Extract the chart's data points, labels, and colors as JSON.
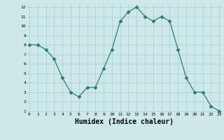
{
  "x": [
    0,
    1,
    2,
    3,
    4,
    5,
    6,
    7,
    8,
    9,
    10,
    11,
    12,
    13,
    14,
    15,
    16,
    17,
    18,
    19,
    20,
    21,
    22,
    23
  ],
  "y": [
    8,
    8,
    7.5,
    6.5,
    4.5,
    3,
    2.5,
    3.5,
    3.5,
    5.5,
    7.5,
    10.5,
    11.5,
    12,
    11,
    10.5,
    11,
    10.5,
    7.5,
    4.5,
    3,
    3,
    1.5,
    1
  ],
  "line_color": "#2d7d6e",
  "marker": "D",
  "marker_size": 2.5,
  "background_color": "#cce8e8",
  "grid_color": "#aacece",
  "xlabel": "Humidex (Indice chaleur)",
  "xlabel_fontsize": 7,
  "xlim": [
    0,
    23
  ],
  "ylim": [
    1,
    12
  ],
  "yticks": [
    1,
    2,
    3,
    4,
    5,
    6,
    7,
    8,
    9,
    10,
    11,
    12
  ],
  "xticks": [
    0,
    1,
    2,
    3,
    4,
    5,
    6,
    7,
    8,
    9,
    10,
    11,
    12,
    13,
    14,
    15,
    16,
    17,
    18,
    19,
    20,
    21,
    22,
    23
  ]
}
